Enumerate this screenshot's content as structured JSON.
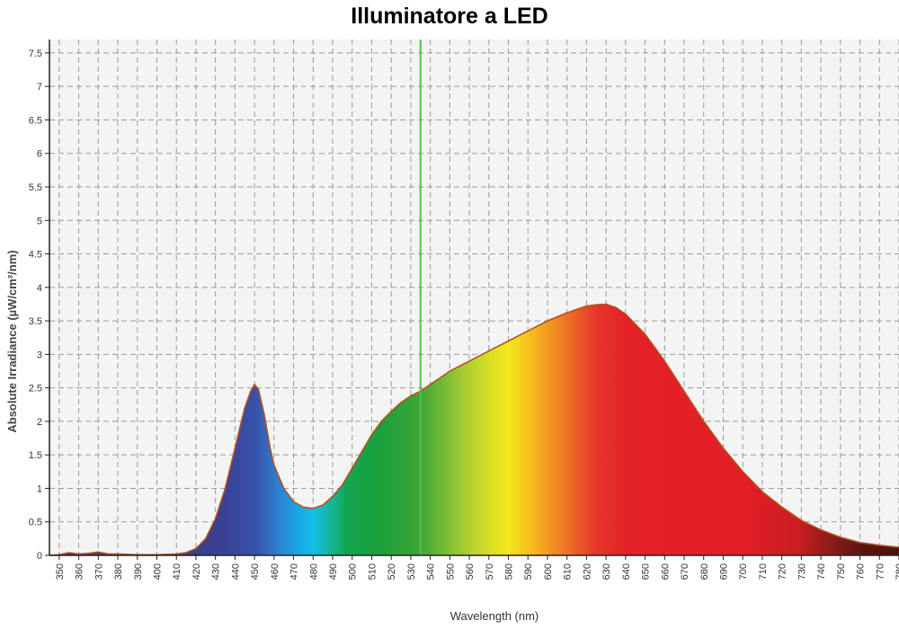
{
  "chart_data": {
    "type": "area",
    "title": "Illuminatore a LED",
    "xlabel": "Wavelength (nm)",
    "ylabel": "Absolute Irradiance (µW/cm²/nm)",
    "xlim": [
      345,
      780
    ],
    "ylim": [
      0,
      7.7
    ],
    "grid": true,
    "x_ticks": [
      350,
      360,
      370,
      380,
      390,
      400,
      410,
      420,
      430,
      440,
      450,
      460,
      470,
      480,
      490,
      500,
      510,
      520,
      530,
      540,
      550,
      560,
      570,
      580,
      590,
      600,
      610,
      620,
      630,
      640,
      650,
      660,
      670,
      680,
      690,
      700,
      710,
      720,
      730,
      740,
      750,
      760,
      770,
      780
    ],
    "x_tick_labels": [
      "350",
      "360",
      "370",
      "380",
      "390",
      "400",
      "410",
      "420",
      "430",
      "440",
      "450",
      "460",
      "470",
      "480",
      "490",
      "500",
      "510",
      "520",
      "530",
      "540",
      "550",
      "560",
      "570",
      "580",
      "590",
      "600",
      "610",
      "620",
      "630",
      "640",
      "650",
      "660",
      "670",
      "680",
      "690",
      "700",
      "710",
      "720",
      "730",
      "740",
      "750",
      "760",
      "770",
      "780"
    ],
    "y_ticks": [
      0,
      0.5,
      1,
      1.5,
      2,
      2.5,
      3,
      3.5,
      4,
      4.5,
      5,
      5.5,
      6,
      6.5,
      7,
      7.5
    ],
    "y_tick_labels": [
      "0",
      "0.5",
      "1",
      "1.5",
      "2",
      "2.5",
      "3",
      "3.5",
      "4",
      "4.5",
      "5",
      "5.5",
      "6",
      "6.5",
      "7",
      "7.5"
    ],
    "marker_line_x": 535,
    "series": [
      {
        "x": [
          345,
          350,
          355,
          360,
          365,
          370,
          375,
          380,
          390,
          400,
          410,
          415,
          420,
          425,
          430,
          435,
          440,
          445,
          448,
          450,
          452,
          455,
          458,
          460,
          465,
          470,
          475,
          480,
          485,
          490,
          495,
          500,
          505,
          510,
          515,
          520,
          525,
          530,
          535,
          540,
          545,
          550,
          560,
          570,
          580,
          590,
          600,
          610,
          620,
          625,
          630,
          635,
          640,
          650,
          660,
          670,
          680,
          690,
          700,
          710,
          720,
          730,
          740,
          750,
          760,
          770,
          780
        ],
        "y": [
          0.0,
          0.01,
          0.04,
          0.02,
          0.03,
          0.05,
          0.02,
          0.02,
          0.01,
          0.01,
          0.02,
          0.04,
          0.1,
          0.25,
          0.55,
          1.0,
          1.6,
          2.2,
          2.45,
          2.55,
          2.48,
          2.1,
          1.6,
          1.35,
          1.0,
          0.8,
          0.72,
          0.7,
          0.75,
          0.88,
          1.05,
          1.3,
          1.55,
          1.8,
          2.0,
          2.15,
          2.28,
          2.38,
          2.45,
          2.55,
          2.65,
          2.75,
          2.9,
          3.05,
          3.2,
          3.35,
          3.5,
          3.62,
          3.72,
          3.74,
          3.75,
          3.7,
          3.6,
          3.3,
          2.9,
          2.45,
          2.0,
          1.6,
          1.25,
          0.95,
          0.72,
          0.52,
          0.38,
          0.27,
          0.19,
          0.15,
          0.12
        ]
      }
    ]
  }
}
